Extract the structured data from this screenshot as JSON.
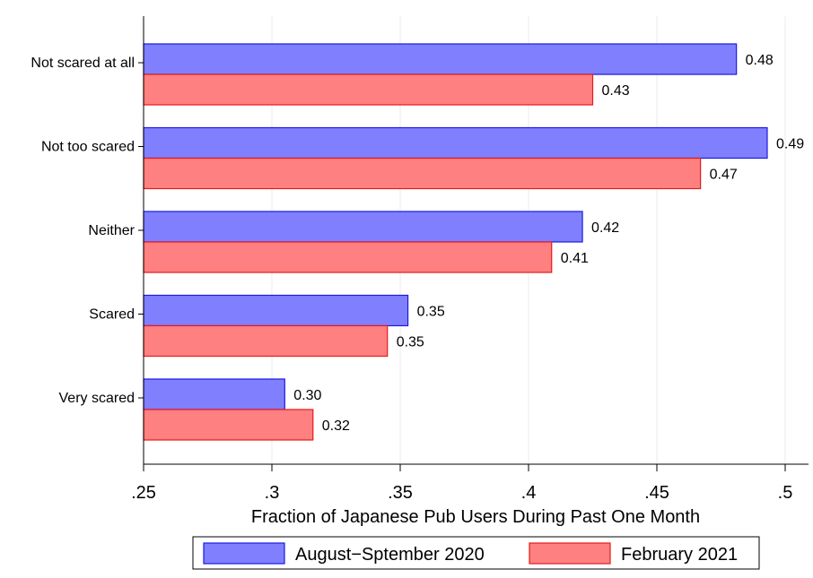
{
  "chart_data": {
    "type": "bar",
    "orientation": "horizontal",
    "title": "",
    "xlabel": "Fraction of Japanese Pub Users During Past One Month",
    "ylabel": "",
    "xlim": [
      0.25,
      0.5
    ],
    "x_ticks": [
      ".25",
      ".3",
      ".35",
      ".4",
      ".45",
      ".5"
    ],
    "x_tick_values": [
      0.25,
      0.3,
      0.35,
      0.4,
      0.45,
      0.5
    ],
    "grid": "vertical",
    "legend_position": "bottom",
    "categories": [
      "Not scared at all",
      "Not too scared",
      "Neither",
      "Scared",
      "Very scared"
    ],
    "series": [
      {
        "name": "August−Sptember 2020",
        "color": "#8080ff",
        "stroke": "#1a1ae6",
        "values": [
          0.481,
          0.493,
          0.421,
          0.353,
          0.305
        ],
        "labels": [
          "0.48",
          "0.49",
          "0.42",
          "0.35",
          "0.30"
        ]
      },
      {
        "name": "February 2021",
        "color": "#ff8080",
        "stroke": "#e61a1a",
        "values": [
          0.425,
          0.467,
          0.409,
          0.345,
          0.316
        ],
        "labels": [
          "0.43",
          "0.47",
          "0.41",
          "0.35",
          "0.32"
        ]
      }
    ]
  }
}
